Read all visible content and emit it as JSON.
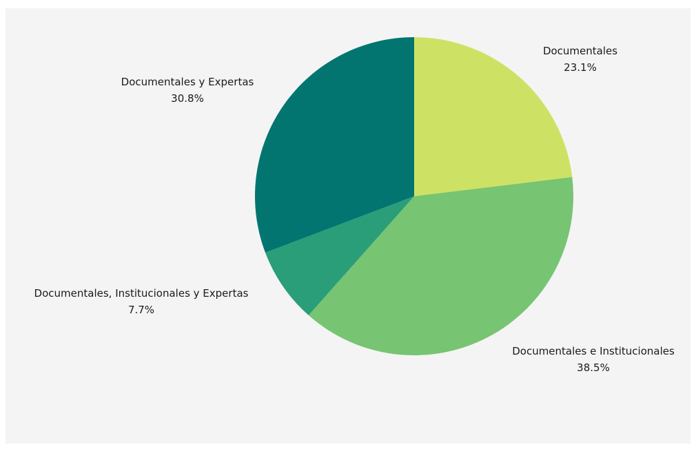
{
  "chart_data": {
    "type": "pie",
    "title": "",
    "start_angle_deg": 0,
    "direction": "clockwise",
    "legend": "none",
    "slices": [
      {
        "label": "Documentales",
        "value": 23.1,
        "display": "23.1%",
        "color": "#cde264"
      },
      {
        "label": "Documentales e Institucionales",
        "value": 38.5,
        "display": "38.5%",
        "color": "#77c472"
      },
      {
        "label": "Documentales, Institucionales y Expertas",
        "value": 7.7,
        "display": "7.7%",
        "color": "#2a9e78"
      },
      {
        "label": "Documentales y Expertas",
        "value": 30.8,
        "display": "30.8%",
        "color": "#027570"
      }
    ]
  }
}
